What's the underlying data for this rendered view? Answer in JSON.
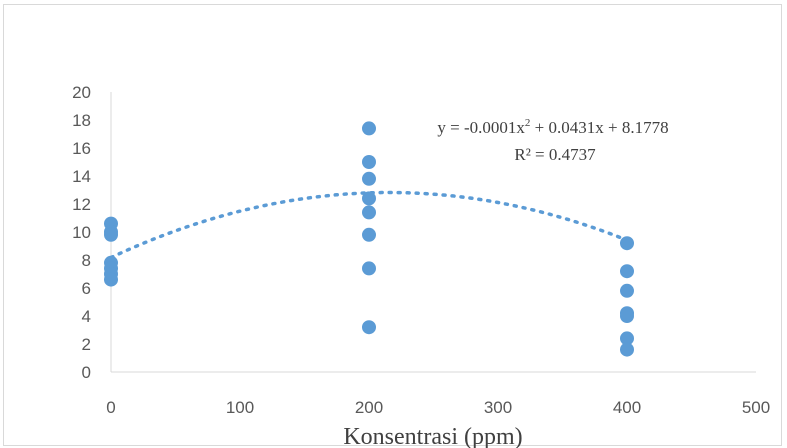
{
  "chart_data": {
    "type": "scatter",
    "title": "",
    "xlabel": "Konsentrasi (ppm)",
    "ylabel": "",
    "xlim": [
      0,
      500
    ],
    "ylim": [
      0,
      20
    ],
    "x_ticks": [
      0,
      100,
      200,
      300,
      400,
      500
    ],
    "y_ticks": [
      0,
      2,
      4,
      6,
      8,
      10,
      12,
      14,
      16,
      18,
      20
    ],
    "grid": false,
    "legend": "none",
    "marker_color": "#5B9BD5",
    "trendline_color": "#5B9BD5",
    "series": [
      {
        "points": [
          {
            "x": 0,
            "y": 10.6
          },
          {
            "x": 0,
            "y": 10.0
          },
          {
            "x": 0,
            "y": 9.8
          },
          {
            "x": 0,
            "y": 7.8
          },
          {
            "x": 0,
            "y": 7.4
          },
          {
            "x": 0,
            "y": 7.0
          },
          {
            "x": 0,
            "y": 6.6
          },
          {
            "x": 200,
            "y": 17.4
          },
          {
            "x": 200,
            "y": 15.0
          },
          {
            "x": 200,
            "y": 13.8
          },
          {
            "x": 200,
            "y": 12.4
          },
          {
            "x": 200,
            "y": 11.4
          },
          {
            "x": 200,
            "y": 9.8
          },
          {
            "x": 200,
            "y": 7.4
          },
          {
            "x": 200,
            "y": 3.2
          },
          {
            "x": 400,
            "y": 9.2
          },
          {
            "x": 400,
            "y": 7.2
          },
          {
            "x": 400,
            "y": 5.8
          },
          {
            "x": 400,
            "y": 4.2
          },
          {
            "x": 400,
            "y": 4.0
          },
          {
            "x": 400,
            "y": 2.4
          },
          {
            "x": 400,
            "y": 1.6
          }
        ]
      }
    ],
    "trendline": {
      "type": "polynomial-2",
      "coefficients": [
        -0.0001,
        0.0431,
        8.1778
      ],
      "x_range": [
        0,
        400
      ],
      "style": "dotted"
    },
    "annotations": {
      "equation_prefix": "y = -0.0001x",
      "equation_sup": "2",
      "equation_suffix": " + 0.0431x + 8.1778",
      "r_squared": "R² = 0.4737"
    }
  }
}
